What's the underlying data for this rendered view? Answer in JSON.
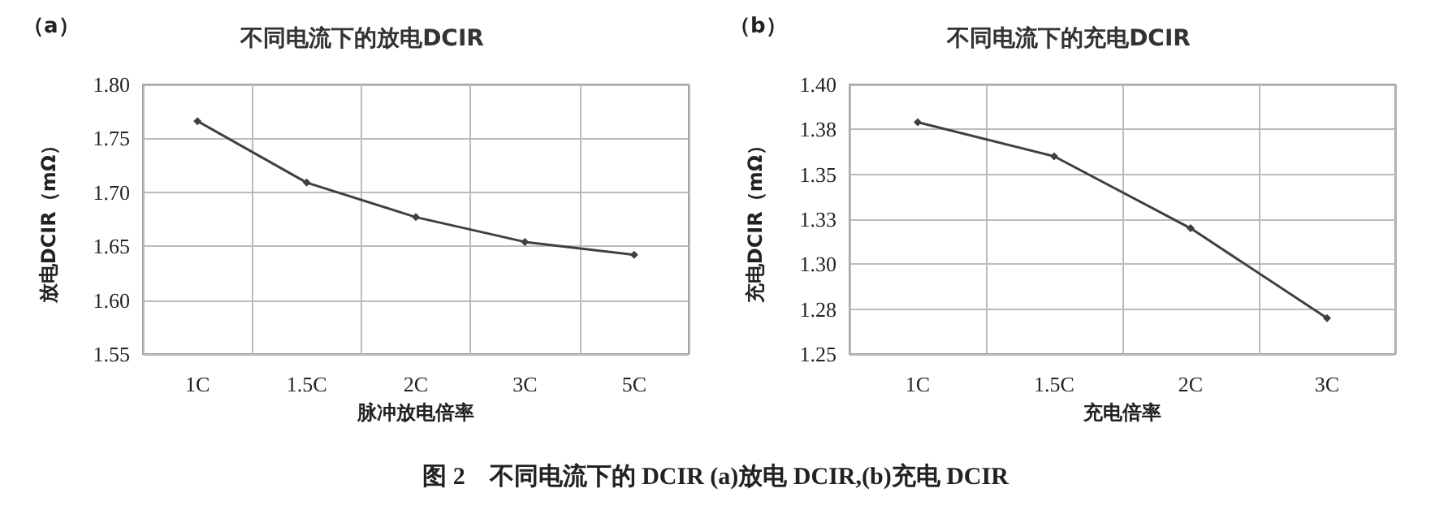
{
  "chart_data": [
    {
      "type": "line",
      "title": "不同电流下的放电DCIR",
      "xlabel": "脉冲放电倍率",
      "ylabel": "放电DCIR（mΩ）",
      "annotations": [
        "（a）",
        "图 2　不同电流下的 DCIR (a)放电 DCIR,(b)充电 DCIR"
      ],
      "categories": [
        "1C",
        "1.5C",
        "2C",
        "3C",
        "5C"
      ],
      "series": [
        {
          "color": "#404040",
          "values": [
            1.766,
            1.709,
            1.677,
            1.654,
            1.642
          ]
        }
      ],
      "ylim": [
        1.55,
        1.8
      ],
      "yticks": [
        1.55,
        {
          "value": 1.6,
          "label": "1.60"
        },
        1.65,
        {
          "value": 1.7,
          "label": "1.70"
        },
        1.75,
        {
          "value": 1.8,
          "label": "1.80"
        }
      ],
      "grid": true,
      "marker": "diamond",
      "line_style": "solid"
    },
    {
      "type": "line",
      "title": "不同电流下的充电DCIR",
      "xlabel": "充电倍率",
      "ylabel": "充电DCIR（mΩ）",
      "annotations": [
        "（b）"
      ],
      "categories": [
        "1C",
        "1.5C",
        "2C",
        "3C"
      ],
      "series": [
        {
          "color": "#404040",
          "values": [
            1.379,
            1.36,
            1.32,
            1.27
          ]
        }
      ],
      "ylim": [
        1.25,
        1.4
      ],
      "yticks": [
        {
          "value": 1.25,
          "label": "1.25"
        },
        {
          "value": 1.275,
          "label": "1.28"
        },
        {
          "value": 1.3,
          "label": "1.30"
        },
        {
          "value": 1.325,
          "label": "1.33"
        },
        {
          "value": 1.35,
          "label": "1.35"
        },
        {
          "value": 1.375,
          "label": "1.38"
        },
        {
          "value": 1.4,
          "label": "1.40"
        }
      ],
      "grid": true,
      "marker": "diamond",
      "line_style": "solid"
    }
  ]
}
